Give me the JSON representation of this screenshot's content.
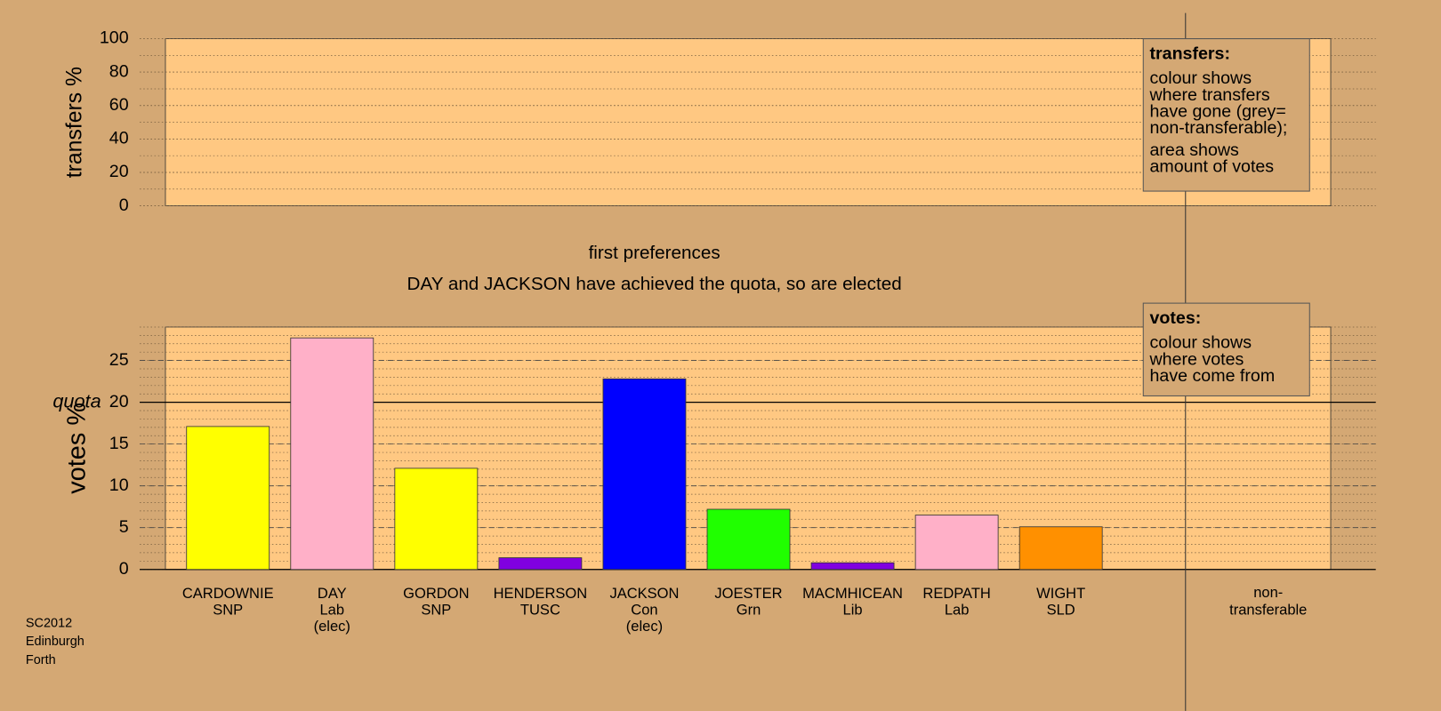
{
  "chart_data": [
    {
      "type": "bar",
      "ylabel": "transfers %",
      "ylim": [
        0,
        100
      ],
      "yticks": [
        0,
        20,
        40,
        60,
        80,
        100
      ],
      "grid": true,
      "legend": {
        "title": "transfers:",
        "paragraphs": [
          [
            "colour shows",
            "where transfers",
            "have gone (grey=",
            "non-transferable);"
          ],
          [
            "area shows",
            "amount of votes"
          ]
        ]
      }
    },
    {
      "type": "bar",
      "title": "first preferences",
      "subtitle": "DAY and JACKSON have achieved the quota, so are elected",
      "ylabel": "votes %",
      "ylim": [
        0,
        29
      ],
      "yticks": [
        0,
        5,
        10,
        15,
        20,
        25
      ],
      "grid": true,
      "quota": {
        "value": 20,
        "label": "quota"
      },
      "categories": [
        "CARDOWNIE",
        "DAY",
        "GORDON",
        "HENDERSON",
        "JACKSON",
        "JOESTER",
        "MACMHICEAN",
        "REDPATH",
        "WIGHT"
      ],
      "parties": [
        "SNP",
        "Lab",
        "SNP",
        "TUSC",
        "Con",
        "Grn",
        "Lib",
        "Lab",
        "SLD"
      ],
      "status": [
        null,
        "(elec)",
        null,
        null,
        "(elec)",
        null,
        null,
        null,
        null
      ],
      "values": [
        17.1,
        27.7,
        12.1,
        1.4,
        22.8,
        7.2,
        0.8,
        6.5,
        5.1
      ],
      "colors": [
        "#ffff00",
        "#ffb0c8",
        "#ffff00",
        "#8000e0",
        "#0000ff",
        "#20ff00",
        "#8000e0",
        "#ffb0c8",
        "#ff9000"
      ],
      "nontransferable_label": [
        "non-",
        "transferable"
      ],
      "legend": {
        "title": "votes:",
        "paragraphs": [
          [
            "colour shows",
            "where votes",
            "have come from"
          ]
        ]
      }
    }
  ],
  "footnote": [
    "SC2012",
    "Edinburgh",
    "Forth"
  ]
}
